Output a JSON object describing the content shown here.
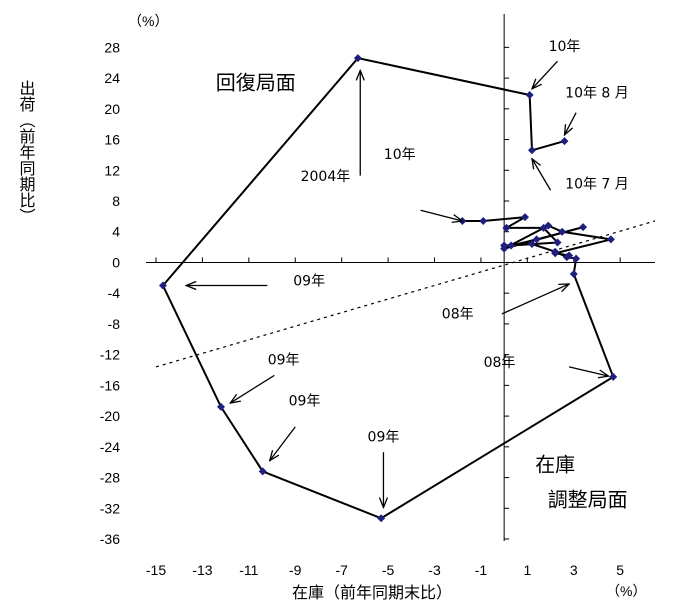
{
  "chart_data": {
    "type": "scatter",
    "xlabel": "在庫（前年同期末比）",
    "ylabel": "出荷（前年同期比）",
    "x_unit": "（%）",
    "y_unit": "（%）",
    "xlim": [
      -15,
      6.5
    ],
    "ylim": [
      -36,
      30
    ],
    "x_ticks": [
      -15,
      -13,
      -11,
      -9,
      -7,
      -5,
      -3,
      -1,
      1,
      3,
      5
    ],
    "y_ticks": [
      28,
      24,
      20,
      16,
      12,
      8,
      4,
      0,
      -4,
      -8,
      -12,
      -16,
      -20,
      -24,
      -28,
      -32,
      -36
    ],
    "grid": false,
    "line_color": "#000000",
    "marker_color": "#1f1f80",
    "series": [
      {
        "points": [
          {
            "x": 0,
            "y": 2.2
          },
          {
            "x": 1.2,
            "y": 2.4
          },
          {
            "x": 2.2,
            "y": 1.4
          },
          {
            "x": 2.7,
            "y": 0.7
          },
          {
            "x": 3.1,
            "y": 0.5
          },
          {
            "x": 3.0,
            "y": -1.5
          },
          {
            "x": 4.7,
            "y": -14.9
          },
          {
            "x": -5.3,
            "y": -33.3
          },
          {
            "x": -10.4,
            "y": -27.2
          },
          {
            "x": -12.2,
            "y": -18.8
          },
          {
            "x": -14.7,
            "y": -3.0
          },
          {
            "x": -6.3,
            "y": 26.6
          },
          {
            "x": 1.1,
            "y": 21.8
          },
          {
            "x": 1.2,
            "y": 14.6
          },
          {
            "x": 2.6,
            "y": 15.8
          }
        ]
      },
      {
        "points": [
          {
            "x": -1.8,
            "y": 5.4
          },
          {
            "x": -0.9,
            "y": 5.4
          },
          {
            "x": 0.9,
            "y": 5.9
          },
          {
            "x": 0.1,
            "y": 4.5
          },
          {
            "x": 1.7,
            "y": 4.5
          },
          {
            "x": 2.3,
            "y": 2.6
          },
          {
            "x": 0.3,
            "y": 2.2
          },
          {
            "x": 1.4,
            "y": 3.0
          },
          {
            "x": 3.4,
            "y": 4.6
          },
          {
            "x": 0.0,
            "y": 1.8
          },
          {
            "x": 1.9,
            "y": 4.8
          },
          {
            "x": 2.5,
            "y": 4.0
          },
          {
            "x": 4.6,
            "y": 3.0
          },
          {
            "x": 2.2,
            "y": 1.2
          },
          {
            "x": 2.8,
            "y": 0.9
          }
        ]
      }
    ],
    "reference_line": {
      "style": "dashed",
      "from": {
        "x": -15,
        "y": -13.6
      },
      "to": {
        "x": 6.5,
        "y": 5.4
      }
    },
    "quadrant_labels": [
      {
        "id": "recovery",
        "text": "回復局面"
      },
      {
        "id": "inv1",
        "text": "在庫"
      },
      {
        "id": "inv2",
        "text": "調整局面"
      }
    ],
    "annotations": [
      {
        "text": "10年",
        "label_at": {
          "x": -4.5,
          "y": 13.5
        },
        "arrow_from": {
          "x": -6.2,
          "y": 11.3
        },
        "arrow_to": {
          "x": -6.2,
          "y": 25.0
        }
      },
      {
        "text": "10年",
        "label_at": {
          "x": 2.6,
          "y": 27.5
        },
        "arrow_from": {
          "x": 2.3,
          "y": 26.2
        },
        "arrow_to": {
          "x": 1.2,
          "y": 22.6
        }
      },
      {
        "text": "10年 8 月",
        "label_at": {
          "x": 4.0,
          "y": 21.5
        },
        "arrow_from": {
          "x": 3.1,
          "y": 19.5
        },
        "arrow_to": {
          "x": 2.6,
          "y": 16.6
        }
      },
      {
        "text": "10年 7 月",
        "label_at": {
          "x": 4.0,
          "y": 9.6
        },
        "arrow_from": {
          "x": 2.0,
          "y": 9.4
        },
        "arrow_to": {
          "x": 1.2,
          "y": 13.5
        }
      },
      {
        "text": "2004年",
        "label_at": {
          "x": -7.7,
          "y": 10.6
        },
        "arrow_from": {
          "x": -3.6,
          "y": 6.8
        },
        "arrow_to": {
          "x": -1.8,
          "y": 5.4
        }
      },
      {
        "text": "09年",
        "label_at": {
          "x": -8.4,
          "y": -3.0
        },
        "arrow_from": {
          "x": -10.2,
          "y": -3.0
        },
        "arrow_to": {
          "x": -13.7,
          "y": -3.0
        }
      },
      {
        "text": "08年",
        "label_at": {
          "x": -2.0,
          "y": -7.3
        },
        "arrow_from": {
          "x": -0.1,
          "y": -6.7
        },
        "arrow_to": {
          "x": 2.8,
          "y": -2.8
        }
      },
      {
        "text": "08年",
        "label_at": {
          "x": -0.2,
          "y": -13.6
        },
        "arrow_from": {
          "x": 2.8,
          "y": -13.6
        },
        "arrow_to": {
          "x": 4.5,
          "y": -14.8
        }
      },
      {
        "text": "09年",
        "label_at": {
          "x": -9.5,
          "y": -13.3
        },
        "arrow_from": {
          "x": -9.9,
          "y": -14.7
        },
        "arrow_to": {
          "x": -11.8,
          "y": -18.3
        }
      },
      {
        "text": "09年",
        "label_at": {
          "x": -8.6,
          "y": -18.6
        },
        "arrow_from": {
          "x": -9.0,
          "y": -21.4
        },
        "arrow_to": {
          "x": -10.1,
          "y": -25.8
        }
      },
      {
        "text": "09年",
        "label_at": {
          "x": -5.2,
          "y": -23.3
        },
        "arrow_from": {
          "x": -5.2,
          "y": -24.7
        },
        "arrow_to": {
          "x": -5.2,
          "y": -31.9
        }
      }
    ]
  }
}
